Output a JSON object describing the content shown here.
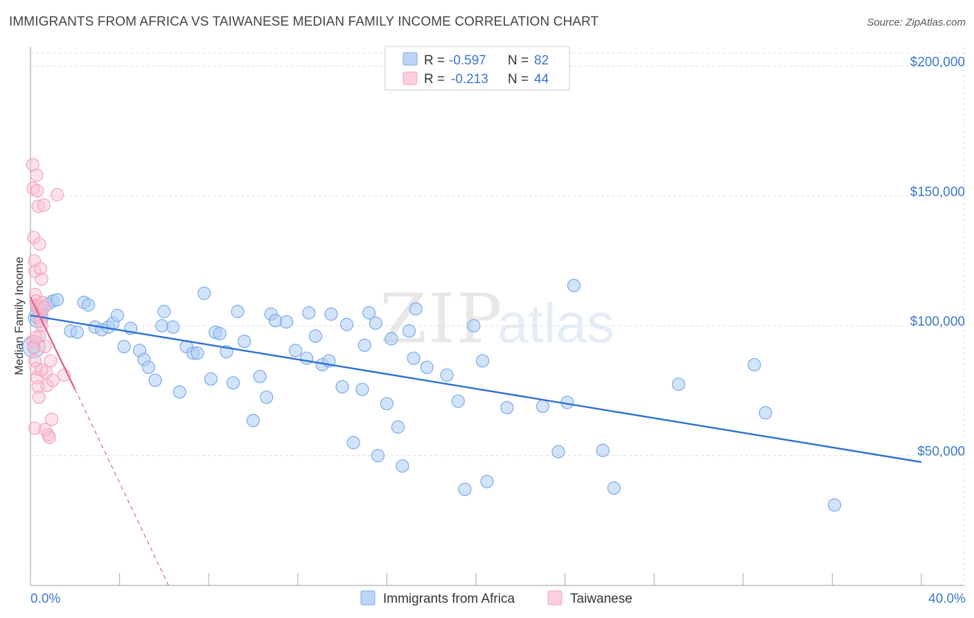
{
  "chart_data": {
    "type": "scatter",
    "title": "IMMIGRANTS FROM AFRICA VS TAIWANESE MEDIAN FAMILY INCOME CORRELATION CHART",
    "source": "Source: ZipAtlas.com",
    "ylabel": "Median Family Income",
    "xlim": [
      0,
      40
    ],
    "ylim": [
      0,
      210000
    ],
    "x_tick_labels": {
      "min": "0.0%",
      "max": "40.0%"
    },
    "y_ticks": [
      {
        "value": 50000,
        "label": "$50,000"
      },
      {
        "value": 100000,
        "label": "$100,000"
      },
      {
        "value": 150000,
        "label": "$150,000"
      },
      {
        "value": 200000,
        "label": "$200,000"
      }
    ],
    "grid": true,
    "watermark": {
      "zip": "ZIP",
      "atlas": "atlas"
    },
    "stats_box": [
      {
        "r_label": "R =",
        "r_value": "-0.597",
        "n_label": "N =",
        "n_value": "82"
      },
      {
        "r_label": "R =",
        "r_value": "-0.213",
        "n_label": "N =",
        "n_value": "44"
      }
    ],
    "series": [
      {
        "name": "Immigrants from Africa",
        "color": "#7aaae6",
        "line_color": "#2a6fd0",
        "trend": {
          "x0": 0.0,
          "y0": 104000,
          "x1": 40.0,
          "y1": 47500,
          "dashed_ext": false
        },
        "points": [
          [
            0.15,
            92000
          ],
          [
            0.3,
            103000
          ],
          [
            0.5,
            106000
          ],
          [
            0.8,
            108500
          ],
          [
            1.0,
            109500
          ],
          [
            1.2,
            110000
          ],
          [
            1.8,
            98000
          ],
          [
            2.1,
            97500
          ],
          [
            2.4,
            109000
          ],
          [
            2.6,
            108000
          ],
          [
            2.9,
            99500
          ],
          [
            3.2,
            98500
          ],
          [
            3.5,
            99500
          ],
          [
            3.7,
            101000
          ],
          [
            3.9,
            104000
          ],
          [
            4.2,
            92000
          ],
          [
            4.5,
            99000
          ],
          [
            4.9,
            90500
          ],
          [
            5.1,
            87000
          ],
          [
            5.3,
            84000
          ],
          [
            5.6,
            79000
          ],
          [
            5.9,
            100000
          ],
          [
            6.0,
            105500
          ],
          [
            6.4,
            99500
          ],
          [
            6.7,
            74500
          ],
          [
            7.0,
            92000
          ],
          [
            7.3,
            89500
          ],
          [
            7.5,
            89500
          ],
          [
            7.8,
            112500
          ],
          [
            8.1,
            79500
          ],
          [
            8.3,
            97500
          ],
          [
            8.5,
            97000
          ],
          [
            8.8,
            90000
          ],
          [
            9.1,
            78000
          ],
          [
            9.3,
            105500
          ],
          [
            9.6,
            94000
          ],
          [
            10.0,
            63500
          ],
          [
            10.3,
            80500
          ],
          [
            10.6,
            72500
          ],
          [
            10.8,
            104500
          ],
          [
            11.0,
            102000
          ],
          [
            11.5,
            101500
          ],
          [
            11.9,
            90500
          ],
          [
            12.4,
            87500
          ],
          [
            12.5,
            105000
          ],
          [
            12.8,
            96000
          ],
          [
            13.1,
            85000
          ],
          [
            13.4,
            86500
          ],
          [
            13.5,
            104500
          ],
          [
            14.0,
            76500
          ],
          [
            14.2,
            100500
          ],
          [
            14.5,
            55000
          ],
          [
            14.9,
            75500
          ],
          [
            15.0,
            92500
          ],
          [
            15.2,
            105000
          ],
          [
            15.5,
            101000
          ],
          [
            15.6,
            50000
          ],
          [
            16.0,
            70000
          ],
          [
            16.2,
            95000
          ],
          [
            16.5,
            61000
          ],
          [
            16.7,
            46000
          ],
          [
            17.0,
            98000
          ],
          [
            17.2,
            87500
          ],
          [
            17.3,
            106500
          ],
          [
            17.8,
            84000
          ],
          [
            18.7,
            81000
          ],
          [
            19.2,
            71000
          ],
          [
            19.5,
            37000
          ],
          [
            19.9,
            100000
          ],
          [
            20.3,
            86500
          ],
          [
            20.5,
            40000
          ],
          [
            21.4,
            68500
          ],
          [
            23.0,
            69000
          ],
          [
            23.7,
            51500
          ],
          [
            24.1,
            70500
          ],
          [
            24.4,
            115500
          ],
          [
            25.7,
            52000
          ],
          [
            26.2,
            37500
          ],
          [
            29.1,
            77500
          ],
          [
            32.5,
            85000
          ],
          [
            33.0,
            66500
          ],
          [
            36.1,
            31000
          ]
        ]
      },
      {
        "name": "Taiwanese",
        "color": "#f4a3bc",
        "line_color": "#e0638f",
        "trend": {
          "x0": 0.0,
          "y0": 111000,
          "x1": 2.0,
          "y1": 75500,
          "dash_x1": 6.2,
          "dash_y1": 0,
          "dashed_ext": true
        },
        "points": [
          [
            0.1,
            162000
          ],
          [
            0.12,
            153000
          ],
          [
            0.15,
            134000
          ],
          [
            0.18,
            125000
          ],
          [
            0.2,
            121000
          ],
          [
            0.22,
            112000
          ],
          [
            0.25,
            109500
          ],
          [
            0.28,
            108000
          ],
          [
            0.3,
            107500
          ],
          [
            0.35,
            106500
          ],
          [
            0.4,
            104000
          ],
          [
            0.45,
            102000
          ],
          [
            0.5,
            100000
          ],
          [
            0.12,
            94000
          ],
          [
            0.15,
            91500
          ],
          [
            0.2,
            86500
          ],
          [
            0.25,
            83500
          ],
          [
            0.3,
            80000
          ],
          [
            0.35,
            76500
          ],
          [
            0.38,
            72500
          ],
          [
            0.2,
            60500
          ],
          [
            0.28,
            158000
          ],
          [
            0.3,
            152000
          ],
          [
            0.35,
            146000
          ],
          [
            0.4,
            131500
          ],
          [
            0.45,
            122000
          ],
          [
            0.5,
            118000
          ],
          [
            0.55,
            109000
          ],
          [
            0.6,
            107000
          ],
          [
            0.65,
            92000
          ],
          [
            0.7,
            82000
          ],
          [
            0.75,
            77000
          ],
          [
            0.8,
            58000
          ],
          [
            0.85,
            57000
          ],
          [
            0.9,
            86500
          ],
          [
            0.95,
            64000
          ],
          [
            1.0,
            79000
          ],
          [
            1.2,
            150500
          ],
          [
            1.5,
            81000
          ],
          [
            0.6,
            146500
          ],
          [
            0.4,
            96000
          ],
          [
            0.5,
            83000
          ],
          [
            0.65,
            60000
          ],
          [
            0.25,
            95500
          ]
        ]
      }
    ]
  }
}
